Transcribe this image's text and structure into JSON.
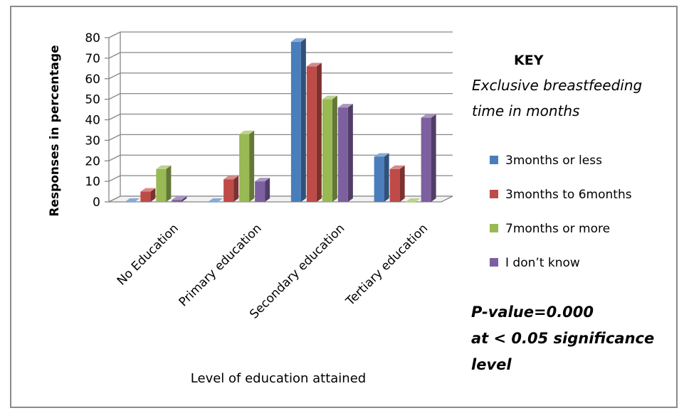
{
  "chart_data": {
    "type": "bar",
    "xlabel": "Level of education attained",
    "ylabel": "Responses in percentage",
    "ylim": [
      0,
      80
    ],
    "yticks": [
      0,
      10,
      20,
      30,
      40,
      50,
      60,
      70,
      80
    ],
    "grid": true,
    "legend_position": "right",
    "categories": [
      "No Education",
      "Primary education",
      "Secondary education",
      "Tertiary education"
    ],
    "series": [
      {
        "name": "3months or less",
        "color": "#4a7ebb",
        "values": [
          0,
          0,
          78,
          22
        ]
      },
      {
        "name": "3months to 6months",
        "color": "#be4b48",
        "values": [
          5,
          11,
          66,
          16
        ]
      },
      {
        "name": "7months or more",
        "color": "#98b954",
        "values": [
          16,
          33,
          50,
          0
        ]
      },
      {
        "name": "I don’t know",
        "color": "#7d60a0",
        "values": [
          1,
          10,
          46,
          41
        ]
      }
    ],
    "legend": {
      "title": "KEY",
      "subtitle_line1": "Exclusive breastfeeding",
      "subtitle_line2": "time in months"
    },
    "annotation": {
      "line1": "P-value=0.000",
      "line2": "at < 0.05 significance",
      "line3": "level"
    }
  }
}
